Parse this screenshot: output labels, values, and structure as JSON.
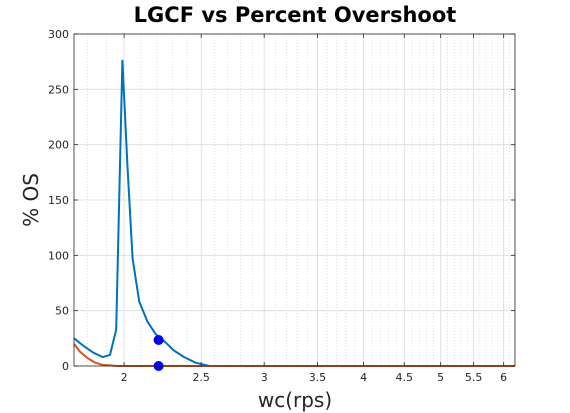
{
  "chart_data": {
    "type": "line",
    "title": "LGCF vs Percent Overshoot",
    "xlabel": "wc(rps)",
    "ylabel": "% OS",
    "x_scale": "log",
    "xlim": [
      1.73,
      6.2
    ],
    "ylim": [
      0,
      300
    ],
    "grid": true,
    "minor_grid": true,
    "legend": "none",
    "xticks": [
      {
        "value": 2,
        "label": "2"
      },
      {
        "value": 2.5,
        "label": "2.5"
      },
      {
        "value": 3,
        "label": "3"
      },
      {
        "value": 3.5,
        "label": "3.5"
      },
      {
        "value": 4,
        "label": "4"
      },
      {
        "value": 4.5,
        "label": "4.5"
      },
      {
        "value": 5,
        "label": "5"
      },
      {
        "value": 5.5,
        "label": "5.5"
      },
      {
        "value": 6,
        "label": "6"
      }
    ],
    "yticks": [
      {
        "value": 0,
        "label": "0"
      },
      {
        "value": 50,
        "label": "50"
      },
      {
        "value": 100,
        "label": "100"
      },
      {
        "value": 150,
        "label": "150"
      },
      {
        "value": 200,
        "label": "200"
      },
      {
        "value": 250,
        "label": "250"
      },
      {
        "value": 300,
        "label": "300"
      }
    ],
    "series": [
      {
        "color": "#0072BD",
        "x": [
          1.73,
          1.78,
          1.83,
          1.88,
          1.92,
          1.955,
          1.99,
          2.02,
          2.05,
          2.09,
          2.14,
          2.19,
          2.25,
          2.31,
          2.38,
          2.46,
          2.56,
          2.7,
          3.0,
          3.5,
          4.0,
          5.0,
          6.2
        ],
        "y": [
          25,
          18,
          12,
          8,
          10,
          33,
          276,
          180,
          97,
          58,
          40,
          29,
          22,
          14,
          8,
          3,
          0,
          0,
          0,
          0,
          0,
          0,
          0
        ]
      },
      {
        "color": "#D95319",
        "x": [
          1.73,
          1.76,
          1.8,
          1.84,
          1.88,
          1.92,
          1.96,
          2.0,
          2.1,
          2.3,
          2.6,
          3.0,
          4.0,
          5.0,
          6.2
        ],
        "y": [
          20,
          13,
          7,
          3,
          1,
          0.5,
          0,
          0,
          0,
          0,
          0,
          0,
          0,
          0,
          0
        ]
      }
    ],
    "markers": [
      {
        "x": 2.21,
        "y": 23.5,
        "color": "#0000FF"
      },
      {
        "x": 2.21,
        "y": 0,
        "color": "#0000FF"
      }
    ]
  }
}
